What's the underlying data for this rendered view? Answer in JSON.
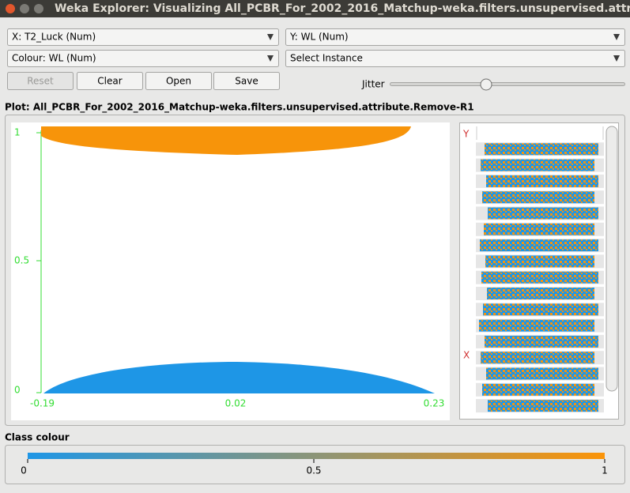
{
  "window": {
    "title": "Weka Explorer: Visualizing All_PCBR_For_2002_2016_Matchup-weka.filters.unsupervised.attribute"
  },
  "controls": {
    "x_axis": "X: T2_Luck (Num)",
    "y_axis": "Y: WL (Num)",
    "colour": "Colour: WL (Num)",
    "instance": "Select Instance",
    "buttons": [
      "Reset",
      "Clear",
      "Open",
      "Save"
    ],
    "jitter": "Jitter"
  },
  "plot": {
    "title": "Plot: All_PCBR_For_2002_2016_Matchup-weka.filters.unsupervised.attribute.Remove-R1",
    "y_ticks": [
      "1",
      "0.5",
      "0"
    ],
    "x_ticks": [
      "-0.19",
      "0.02",
      "0.23"
    ],
    "attribute_markers": [
      "Y",
      "X"
    ]
  },
  "class_colour": {
    "title": "Class colour",
    "ticks": [
      "0",
      "0.5",
      "1"
    ]
  }
}
